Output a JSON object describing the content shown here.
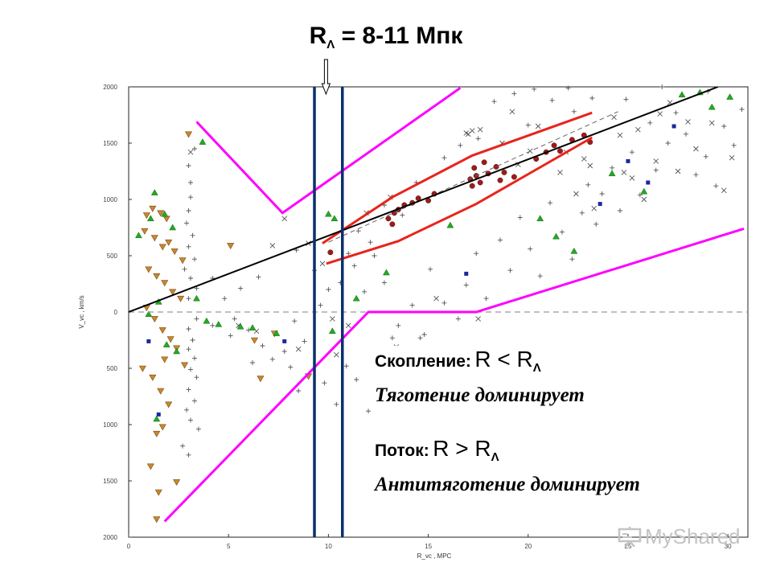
{
  "title": {
    "main": "R",
    "sub": "Λ",
    "rest": " = 8-11  Мпк"
  },
  "annotations": {
    "cluster_label": "Скопление:",
    "cluster_formula": "R < R",
    "cluster_formula_sub": "Λ",
    "cluster_text": "Тяготение доминирует",
    "flow_label": "Поток:",
    "flow_formula": "R > R",
    "flow_formula_sub": "Λ",
    "flow_text": "Антитяготение доминирует"
  },
  "watermark": "MyShared",
  "colors": {
    "hubble_line": "#000000",
    "boundary_line": "#ff00ff",
    "lambda_lines": "#0a2f6e",
    "band": "#e8241c",
    "triangle_up": "#22aa22",
    "triangle_down": "#c9882c",
    "square": "#1a2a9a",
    "galaxy_dot": "#9b1c1c"
  },
  "chart_data": {
    "type": "scatter",
    "title": "",
    "xlabel": "R_vc , MPC",
    "ylabel": "V_vc , km/s",
    "xlim": [
      0,
      31
    ],
    "ylim": [
      -2000,
      2000
    ],
    "x_ticks": [
      "0",
      "5",
      "10",
      "15",
      "20",
      "25",
      "30"
    ],
    "y_ticks": [
      "2000",
      "1500",
      "1000",
      "500",
      "0",
      "500",
      "1000",
      "1500",
      "2000"
    ],
    "hubble_line": [
      [
        0,
        0
      ],
      [
        29.5,
        2000
      ]
    ],
    "dashed_line": [
      [
        10,
        620
      ],
      [
        24.5,
        1780
      ]
    ],
    "zero_line": true,
    "lambda_radius_lines": [
      9.3,
      10.7
    ],
    "boundary_upper": [
      [
        3.4,
        1690
      ],
      [
        7.7,
        880
      ],
      [
        16.6,
        1990
      ]
    ],
    "boundary_lower": [
      [
        1.8,
        -1860
      ],
      [
        12,
        0
      ],
      [
        17.4,
        0
      ],
      [
        30.8,
        740
      ]
    ],
    "band_upper": [
      [
        9.7,
        610
      ],
      [
        13.2,
        1020
      ],
      [
        17.2,
        1390
      ],
      [
        23.2,
        1770
      ]
    ],
    "band_lower": [
      [
        9.9,
        430
      ],
      [
        13.5,
        630
      ],
      [
        17.4,
        960
      ],
      [
        23.2,
        1550
      ]
    ],
    "series": [
      {
        "marker": "circle",
        "points": [
          [
            13.0,
            830
          ],
          [
            13.3,
            880
          ],
          [
            13.5,
            910
          ],
          [
            13.2,
            780
          ],
          [
            13.8,
            950
          ],
          [
            14.2,
            970
          ],
          [
            14.5,
            1010
          ],
          [
            15.0,
            990
          ],
          [
            15.3,
            1050
          ],
          [
            17.1,
            1180
          ],
          [
            17.4,
            1210
          ],
          [
            17.3,
            1280
          ],
          [
            17.6,
            1150
          ],
          [
            17.2,
            1120
          ],
          [
            18.0,
            1230
          ],
          [
            18.4,
            1290
          ],
          [
            18.8,
            1240
          ],
          [
            19.3,
            1200
          ],
          [
            20.4,
            1360
          ],
          [
            20.9,
            1420
          ],
          [
            21.3,
            1480
          ],
          [
            21.6,
            1430
          ],
          [
            22.2,
            1530
          ],
          [
            22.8,
            1570
          ],
          [
            23.1,
            1510
          ],
          [
            10.1,
            530
          ],
          [
            17.8,
            1330
          ],
          [
            18.6,
            1170
          ]
        ]
      },
      {
        "marker": "triangle-up",
        "points": [
          [
            0.5,
            680
          ],
          [
            1.3,
            1060
          ],
          [
            1.8,
            870
          ],
          [
            2.2,
            750
          ],
          [
            3.7,
            1510
          ],
          [
            1.0,
            -20
          ],
          [
            1.5,
            90
          ],
          [
            1.9,
            -290
          ],
          [
            2.4,
            -350
          ],
          [
            3.4,
            120
          ],
          [
            3.9,
            -80
          ],
          [
            4.5,
            -110
          ],
          [
            5.6,
            -130
          ],
          [
            6.2,
            -140
          ],
          [
            7.4,
            -190
          ],
          [
            10.0,
            870
          ],
          [
            10.3,
            830
          ],
          [
            11.4,
            120
          ],
          [
            12.9,
            350
          ],
          [
            16.1,
            770
          ],
          [
            20.6,
            830
          ],
          [
            21.4,
            670
          ],
          [
            22.3,
            540
          ],
          [
            24.2,
            1230
          ],
          [
            25.8,
            1070
          ],
          [
            27.7,
            1930
          ],
          [
            28.6,
            1950
          ],
          [
            29.2,
            1820
          ],
          [
            30.1,
            1910
          ],
          [
            10.2,
            -170
          ],
          [
            1.4,
            -950
          ],
          [
            1.1,
            830
          ]
        ]
      },
      {
        "marker": "triangle-down",
        "points": [
          [
            0.9,
            860
          ],
          [
            1.2,
            920
          ],
          [
            1.6,
            880
          ],
          [
            1.9,
            830
          ],
          [
            0.8,
            720
          ],
          [
            1.3,
            660
          ],
          [
            1.7,
            580
          ],
          [
            2.0,
            620
          ],
          [
            2.3,
            540
          ],
          [
            2.7,
            460
          ],
          [
            1.0,
            380
          ],
          [
            1.4,
            320
          ],
          [
            1.8,
            260
          ],
          [
            2.2,
            180
          ],
          [
            2.6,
            120
          ],
          [
            0.9,
            40
          ],
          [
            1.3,
            -60
          ],
          [
            1.7,
            -160
          ],
          [
            2.1,
            -240
          ],
          [
            2.4,
            -320
          ],
          [
            1.2,
            -580
          ],
          [
            1.6,
            -700
          ],
          [
            2.0,
            -820
          ],
          [
            1.4,
            -1080
          ],
          [
            1.7,
            -1020
          ],
          [
            1.1,
            -1370
          ],
          [
            1.5,
            -1600
          ],
          [
            2.4,
            -1510
          ],
          [
            1.4,
            -1840
          ],
          [
            3.0,
            1580
          ],
          [
            5.1,
            590
          ],
          [
            6.3,
            -250
          ],
          [
            7.3,
            -190
          ],
          [
            9.0,
            -570
          ],
          [
            6.6,
            -590
          ],
          [
            2.8,
            -470
          ],
          [
            0.7,
            -500
          ],
          [
            1.8,
            -420
          ]
        ]
      },
      {
        "marker": "square",
        "points": [
          [
            1.0,
            -260
          ],
          [
            1.5,
            -910
          ],
          [
            7.8,
            -260
          ],
          [
            16.9,
            340
          ],
          [
            23.6,
            960
          ],
          [
            25.0,
            1340
          ],
          [
            26.0,
            1150
          ],
          [
            27.3,
            1650
          ]
        ]
      },
      {
        "marker": "plus",
        "points": [
          [
            3.0,
            1300
          ],
          [
            3.3,
            1450
          ],
          [
            3.1,
            1150
          ],
          [
            3.1,
            1020
          ],
          [
            3.0,
            900
          ],
          [
            2.9,
            790
          ],
          [
            3.2,
            680
          ],
          [
            3.0,
            580
          ],
          [
            3.3,
            470
          ],
          [
            2.8,
            380
          ],
          [
            3.1,
            300
          ],
          [
            3.4,
            210
          ],
          [
            3.0,
            120
          ],
          [
            3.4,
            -60
          ],
          [
            3.0,
            -150
          ],
          [
            3.2,
            -250
          ],
          [
            3.0,
            -330
          ],
          [
            3.3,
            -410
          ],
          [
            3.1,
            -510
          ],
          [
            3.4,
            -580
          ],
          [
            3.0,
            -690
          ],
          [
            3.3,
            -790
          ],
          [
            2.9,
            -870
          ],
          [
            3.1,
            -960
          ],
          [
            3.5,
            -1040
          ],
          [
            2.7,
            -1190
          ],
          [
            3.0,
            -1270
          ],
          [
            4.2,
            300
          ],
          [
            4.8,
            120
          ],
          [
            5.6,
            210
          ],
          [
            5.3,
            -60
          ],
          [
            6.0,
            -160
          ],
          [
            6.7,
            -300
          ],
          [
            7.2,
            -420
          ],
          [
            7.8,
            -350
          ],
          [
            8.3,
            -80
          ],
          [
            8.8,
            -260
          ],
          [
            9.6,
            60
          ],
          [
            10.0,
            200
          ],
          [
            10.6,
            260
          ],
          [
            11.3,
            410
          ],
          [
            11.8,
            180
          ],
          [
            12.3,
            500
          ],
          [
            12.8,
            260
          ],
          [
            13.5,
            -120
          ],
          [
            14.2,
            60
          ],
          [
            14.8,
            -200
          ],
          [
            15.1,
            380
          ],
          [
            15.8,
            80
          ],
          [
            16.5,
            -60
          ],
          [
            16.9,
            240
          ],
          [
            17.4,
            520
          ],
          [
            17.9,
            120
          ],
          [
            18.6,
            640
          ],
          [
            19.1,
            370
          ],
          [
            19.6,
            840
          ],
          [
            20.1,
            560
          ],
          [
            20.6,
            320
          ],
          [
            21.1,
            970
          ],
          [
            21.7,
            710
          ],
          [
            22.2,
            470
          ],
          [
            22.7,
            880
          ],
          [
            23.0,
            1130
          ],
          [
            23.4,
            780
          ],
          [
            23.7,
            1050
          ],
          [
            24.2,
            1280
          ],
          [
            24.6,
            900
          ],
          [
            25.2,
            1420
          ],
          [
            25.6,
            1040
          ],
          [
            26.1,
            1680
          ],
          [
            26.4,
            1260
          ],
          [
            27.0,
            1500
          ],
          [
            27.4,
            1770
          ],
          [
            27.9,
            1580
          ],
          [
            28.4,
            1220
          ],
          [
            28.9,
            1380
          ],
          [
            29.4,
            1120
          ],
          [
            29.8,
            1650
          ],
          [
            30.3,
            1480
          ],
          [
            30.7,
            1800
          ],
          [
            18.3,
            1870
          ],
          [
            19.3,
            1940
          ],
          [
            20.3,
            1980
          ],
          [
            21.2,
            1880
          ],
          [
            22.3,
            1780
          ],
          [
            23.2,
            1900
          ],
          [
            20.0,
            1660
          ],
          [
            22.0,
            1990
          ],
          [
            16.6,
            1480
          ],
          [
            17.5,
            1540
          ],
          [
            15.8,
            1370
          ],
          [
            14.4,
            1150
          ],
          [
            13.7,
            860
          ],
          [
            12.8,
            950
          ],
          [
            12.1,
            620
          ],
          [
            11.5,
            720
          ],
          [
            11.0,
            520
          ],
          [
            9.3,
            370
          ],
          [
            8.4,
            550
          ],
          [
            6.5,
            310
          ],
          [
            14.6,
            -230
          ],
          [
            10.9,
            -480
          ],
          [
            11.4,
            -600
          ],
          [
            12.7,
            -580
          ],
          [
            13.2,
            -230
          ],
          [
            8.1,
            -490
          ],
          [
            8.5,
            -700
          ],
          [
            9.8,
            -630
          ],
          [
            10.4,
            -820
          ],
          [
            12.0,
            -880
          ],
          [
            6.2,
            -450
          ],
          [
            5.1,
            -210
          ],
          [
            4.2,
            -120
          ],
          [
            26.7,
            2000
          ],
          [
            29.0,
            1960
          ],
          [
            24.9,
            1890
          ]
        ]
      },
      {
        "marker": "cross",
        "points": [
          [
            3.1,
            1420
          ],
          [
            7.8,
            830
          ],
          [
            9.0,
            610
          ],
          [
            9.7,
            430
          ],
          [
            8.5,
            -330
          ],
          [
            10.4,
            -380
          ],
          [
            11.0,
            -120
          ],
          [
            13.4,
            -310
          ],
          [
            15.4,
            120
          ],
          [
            17.5,
            -60
          ],
          [
            17.6,
            1620
          ],
          [
            17.0,
            1580
          ],
          [
            18.7,
            1500
          ],
          [
            19.5,
            1310
          ],
          [
            20.1,
            1430
          ],
          [
            21.6,
            1240
          ],
          [
            22.4,
            1050
          ],
          [
            23.3,
            920
          ],
          [
            24.3,
            1730
          ],
          [
            24.6,
            1570
          ],
          [
            25.2,
            1190
          ],
          [
            25.8,
            1000
          ],
          [
            26.4,
            1340
          ],
          [
            27.5,
            1250
          ],
          [
            28.4,
            1450
          ],
          [
            29.2,
            1680
          ],
          [
            29.8,
            1080
          ],
          [
            30.2,
            1370
          ],
          [
            26.6,
            1760
          ],
          [
            25.5,
            1620
          ],
          [
            22.8,
            1360
          ],
          [
            20.5,
            1650
          ],
          [
            13.1,
            1020
          ],
          [
            7.2,
            590
          ],
          [
            6.4,
            -170
          ],
          [
            24.8,
            1240
          ],
          [
            23.1,
            1300
          ],
          [
            19.2,
            1780
          ],
          [
            21.9,
            1420
          ],
          [
            28.0,
            1690
          ],
          [
            27.1,
            1860
          ],
          [
            17.2,
            1610
          ],
          [
            16.9,
            1590
          ],
          [
            11.9,
            880
          ],
          [
            10.2,
            -60
          ],
          [
            5.5,
            -120
          ]
        ]
      }
    ]
  }
}
